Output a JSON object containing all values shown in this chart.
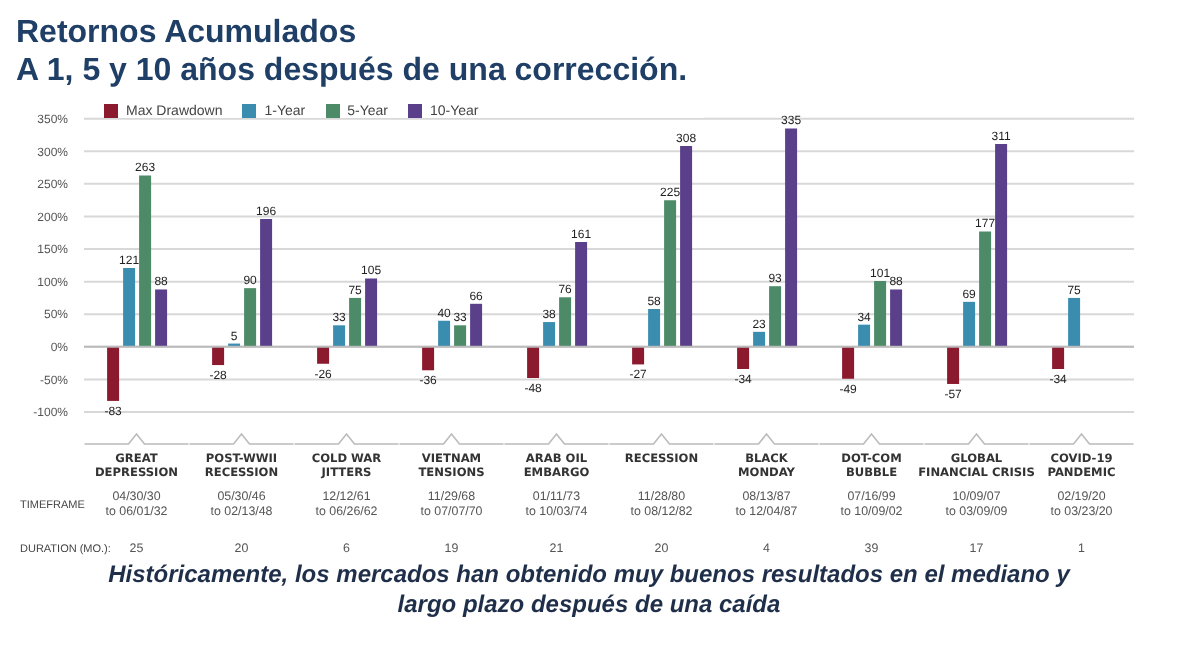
{
  "chart_data": {
    "type": "bar",
    "title": "Retornos Acumulados",
    "subtitle": "A 1, 5 y 10 años después de una corrección.",
    "categories": [
      "GREAT DEPRESSION",
      "POST-WWII RECESSION",
      "COLD WAR JITTERS",
      "VIETNAM TENSIONS",
      "ARAB OIL EMBARGO",
      "RECESSION",
      "BLACK MONDAY",
      "DOT-COM BUBBLE",
      "GLOBAL FINANCIAL CRISIS",
      "COVID-19 PANDEMIC"
    ],
    "series": [
      {
        "name": "Max Drawdown",
        "color": "#8b1a2e",
        "values": [
          -83,
          -28,
          -26,
          -36,
          -48,
          -27,
          -34,
          -49,
          -57,
          -34
        ]
      },
      {
        "name": "1-Year",
        "color": "#3b8db0",
        "values": [
          121,
          5,
          33,
          40,
          38,
          58,
          23,
          34,
          69,
          75
        ]
      },
      {
        "name": "5-Year",
        "color": "#4d8a68",
        "values": [
          263,
          90,
          75,
          33,
          76,
          225,
          93,
          101,
          177,
          null
        ]
      },
      {
        "name": "10-Year",
        "color": "#5a3f8a",
        "values": [
          88,
          196,
          105,
          66,
          161,
          308,
          335,
          88,
          311,
          null
        ]
      }
    ],
    "ylim": [
      -100,
      350
    ],
    "yticks": [
      {
        "value": -100,
        "label": "-100%"
      },
      {
        "value": -50,
        "label": "-50%"
      },
      {
        "value": 0,
        "label": "0%"
      },
      {
        "value": 50,
        "label": "50%"
      },
      {
        "value": 100,
        "label": "100%"
      },
      {
        "value": 150,
        "label": "150%"
      },
      {
        "value": 200,
        "label": "200%"
      },
      {
        "value": 250,
        "label": "250%"
      },
      {
        "value": 300,
        "label": "300%"
      },
      {
        "value": 350,
        "label": "350%"
      }
    ],
    "grid": "y",
    "legend": "top left",
    "data_labels": true,
    "annotations": [
      "TIMEFRAME",
      "DURATION (MO.):",
      "Históricamente, los mercados han obtenido muy buenos resultados en el mediano y largo plazo después de una caída",
      "04/30/30 to 06/01/32",
      "25",
      "05/30/46 to 02/13/48",
      "20",
      "12/12/61 to 06/26/62",
      "6",
      "11/29/68 to 07/07/70",
      "19",
      "01/11/73 to 10/03/74",
      "21",
      "11/28/80 to 08/12/82",
      "20",
      "08/13/87 to 12/04/87",
      "4",
      "07/16/99 to 10/09/02",
      "39",
      "10/09/07 to 03/09/09",
      "17",
      "02/19/20 to 03/23/20",
      "1"
    ]
  }
}
